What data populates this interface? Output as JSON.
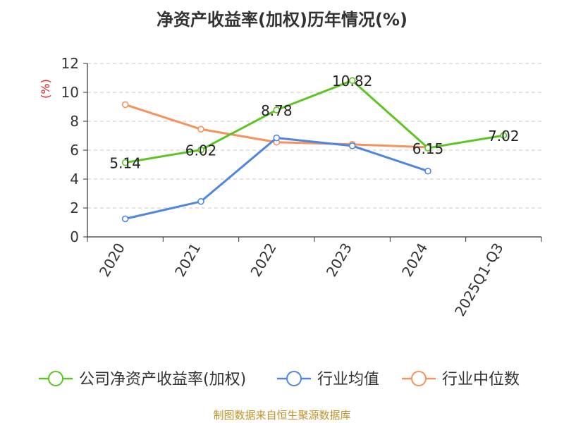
{
  "title": "净资产收益率(加权)历年情况(%)",
  "footer": "制图数据来自恒生聚源数据库",
  "chart_data": {
    "type": "line",
    "title": "净资产收益率(加权)历年情况(%)",
    "ylabel": "(%)",
    "xlabel": "",
    "categories": [
      "2020",
      "2021",
      "2022",
      "2023",
      "2024",
      "2025Q1-Q3"
    ],
    "ylim": [
      0,
      12
    ],
    "yticks": [
      0,
      2,
      4,
      6,
      8,
      10,
      12
    ],
    "grid": true,
    "legend_position": "bottom",
    "series": [
      {
        "name": "公司净资产收益率(加权)",
        "color": "#5cc524",
        "values": [
          5.14,
          6.02,
          8.78,
          10.82,
          6.15,
          7.02
        ],
        "labels": [
          "5.14",
          "6.02",
          "8.78",
          "10.82",
          "6.15",
          "7.02"
        ]
      },
      {
        "name": "行业均值",
        "color": "#4f86e0",
        "values": [
          1.25,
          2.45,
          6.85,
          6.3,
          4.55,
          null
        ]
      },
      {
        "name": "行业中位数",
        "color": "#f7915d",
        "values": [
          9.15,
          7.45,
          6.55,
          6.4,
          6.2,
          null
        ]
      }
    ]
  }
}
